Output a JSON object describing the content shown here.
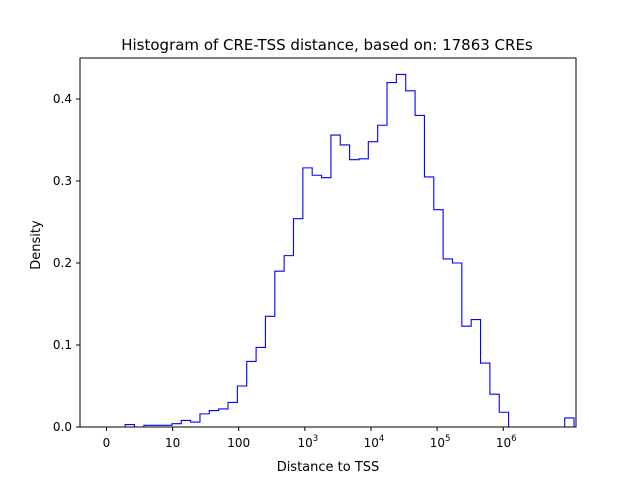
{
  "chart_data": {
    "type": "histogram-step",
    "title": "Histogram of CRE-TSS distance, based on: 17863 CREs",
    "xlabel": "Distance to TSS",
    "ylabel": "Density",
    "x_scale": "log10(distance+1)",
    "xlim": [
      -0.4,
      7.1
    ],
    "ylim": [
      0,
      0.45
    ],
    "x_ticks": [
      {
        "pos": 0,
        "base": "0",
        "sup": ""
      },
      {
        "pos": 1,
        "base": "10",
        "sup": ""
      },
      {
        "pos": 2,
        "base": "100",
        "sup": ""
      },
      {
        "pos": 3,
        "base": "10",
        "sup": "3"
      },
      {
        "pos": 4,
        "base": "10",
        "sup": "4"
      },
      {
        "pos": 5,
        "base": "10",
        "sup": "5"
      },
      {
        "pos": 6,
        "base": "10",
        "sup": "6"
      }
    ],
    "y_ticks": [
      {
        "value": 0.0,
        "label": "0.0"
      },
      {
        "value": 0.1,
        "label": "0.1"
      },
      {
        "value": 0.2,
        "label": "0.2"
      },
      {
        "value": 0.3,
        "label": "0.3"
      },
      {
        "value": 0.4,
        "label": "0.4"
      }
    ],
    "series": [
      {
        "color": "#0000ff",
        "bin_edges": [
          0.0,
          0.1414,
          0.2828,
          0.4242,
          0.5657,
          0.7071,
          0.8485,
          0.9899,
          1.1313,
          1.2727,
          1.4141,
          1.5556,
          1.697,
          1.8384,
          1.9798,
          2.1212,
          2.2626,
          2.404,
          2.5455,
          2.6869,
          2.8283,
          2.9697,
          3.1111,
          3.2525,
          3.3939,
          3.5354,
          3.6768,
          3.8182,
          3.9596,
          4.101,
          4.2424,
          4.3838,
          4.5253,
          4.6667,
          4.8081,
          4.9495,
          5.0909,
          5.2323,
          5.3737,
          5.5152,
          5.6566,
          5.798,
          5.9394,
          6.0808,
          6.2222,
          6.3636,
          6.5051,
          6.6465,
          6.7879,
          6.9293,
          7.0707
        ],
        "density": [
          0.0,
          0.0,
          0.003,
          0.0,
          0.002,
          0.002,
          0.002,
          0.004,
          0.008,
          0.006,
          0.016,
          0.02,
          0.022,
          0.03,
          0.05,
          0.08,
          0.097,
          0.135,
          0.19,
          0.209,
          0.254,
          0.316,
          0.307,
          0.304,
          0.356,
          0.344,
          0.326,
          0.327,
          0.348,
          0.368,
          0.42,
          0.43,
          0.41,
          0.38,
          0.305,
          0.265,
          0.205,
          0.2,
          0.123,
          0.131,
          0.078,
          0.04,
          0.018,
          0.0,
          0.0,
          0.0,
          0.0,
          0.0,
          0.0,
          0.011
        ]
      }
    ]
  }
}
